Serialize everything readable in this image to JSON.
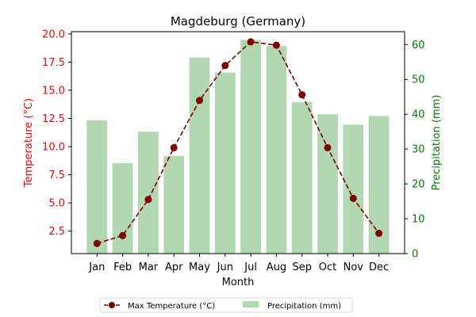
{
  "chart_data": {
    "type": "bar+line",
    "title": "Magdeburg (Germany)",
    "xlabel": "Month",
    "categories": [
      "Jan",
      "Feb",
      "Mar",
      "Apr",
      "May",
      "Jun",
      "Jul",
      "Aug",
      "Sep",
      "Oct",
      "Nov",
      "Dec"
    ],
    "y_left": {
      "label": "Temperature (°C)",
      "color": "#ff0000",
      "ylim": [
        0.5,
        20.2
      ],
      "ticks": [
        "2.5",
        "5.0",
        "7.5",
        "10.0",
        "12.5",
        "15.0",
        "17.5",
        "20.0"
      ]
    },
    "y_right": {
      "label": "Precipitation (mm)",
      "color": "#008000",
      "ylim": [
        0,
        63.7
      ],
      "ticks": [
        "0",
        "10",
        "20",
        "30",
        "40",
        "50",
        "60"
      ]
    },
    "series": [
      {
        "name": "Max Temperature (°C)",
        "type": "line",
        "axis": "left",
        "color": "#800000",
        "line_style": "dashed",
        "marker": "circle",
        "values": [
          1.4,
          2.1,
          5.3,
          9.9,
          14.1,
          17.2,
          19.3,
          19.0,
          14.6,
          9.9,
          5.4,
          2.3
        ]
      },
      {
        "name": "Precipitation (mm)",
        "type": "bar",
        "axis": "right",
        "color": "#b2d8b2",
        "values": [
          38.3,
          26.0,
          35.0,
          28.0,
          56.3,
          52.0,
          61.3,
          59.6,
          43.5,
          40.0,
          37.0,
          39.5
        ]
      }
    ],
    "legend": {
      "placement": "bottom-center",
      "entries": [
        "Max Temperature (°C)",
        "Precipitation (mm)"
      ]
    },
    "grid": false
  }
}
